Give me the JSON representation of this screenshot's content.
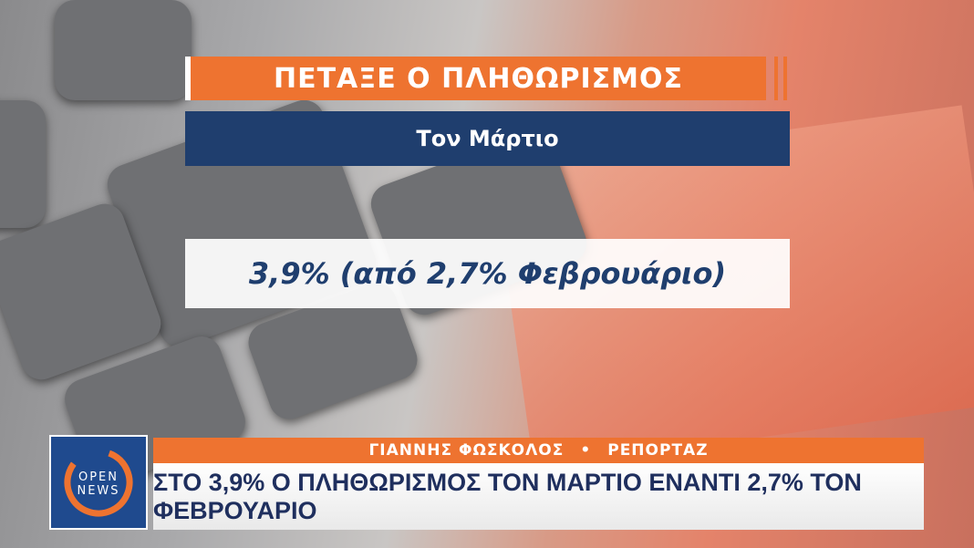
{
  "graphic": {
    "title": "ΠΕΤΑΞΕ Ο ΠΛΗΘΩΡΙΣΜΟΣ",
    "subtitle": "Τον Μάρτιο",
    "value": "3,9% (από 2,7% Φεβρουάριο)"
  },
  "lower_third": {
    "reporter": "ΓΙΑΝΝΗΣ ΦΩΣΚΟΛΟΣ",
    "separator": "•",
    "segment": "ΡΕΠΟΡΤΑΖ",
    "headline": "ΣΤΟ 3,9% Ο ΠΛΗΘΩΡΙΣΜΟΣ ΤΟΝ ΜΑΡΤΙΟ ΕΝΑΝΤΙ 2,7% ΤΟΝ ΦΕΒΡΟΥΑΡΙΟ"
  },
  "logo": {
    "line1": "OPEN",
    "line2": "NEWS"
  },
  "colors": {
    "orange": "#ee7330",
    "navy": "#1f3e6e",
    "logo_blue": "#1f4a8e"
  }
}
